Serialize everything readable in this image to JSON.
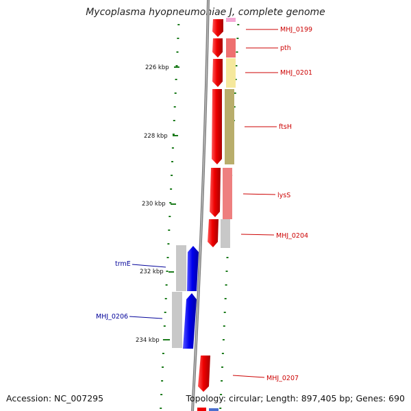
{
  "header": {
    "title": "Mycoplasma hyopneumoniae J, complete genome"
  },
  "footer": {
    "accession": "Accession: NC_007295",
    "summary": "Topology: circular; Length: 897,405 bp; Genes: 690"
  },
  "colors": {
    "forward_gene": "#ee0000",
    "reverse_gene": "#0000ee",
    "forward_label": "#cc0000",
    "reverse_label": "#000099",
    "backbone": "#8a8a8a",
    "tick": "#1a7a1a"
  },
  "ruler": {
    "labels": [
      "226 kbp",
      "228 kbp",
      "230 kbp",
      "232 kbp",
      "234 kbp"
    ]
  },
  "genes_forward": [
    {
      "label": "MHJ_0199",
      "cog_color": "#f4a6d3"
    },
    {
      "label": "pth",
      "cog_color": "#ee6f6f"
    },
    {
      "label": "MHJ_0201",
      "cog_color": "#f5e89c"
    },
    {
      "label": "ftsH",
      "cog_color": "#b8ad6b"
    },
    {
      "label": "lysS",
      "cog_color": "#ee7f7f"
    },
    {
      "label": "MHJ_0204",
      "cog_color": "#c8c8c8"
    },
    {
      "label": "MHJ_0207",
      "cog_color": ""
    }
  ],
  "genes_reverse": [
    {
      "label": "trmE",
      "cog_color": "#c8c8c8"
    },
    {
      "label": "MHJ_0206",
      "cog_color": "#c8c8c8"
    }
  ]
}
